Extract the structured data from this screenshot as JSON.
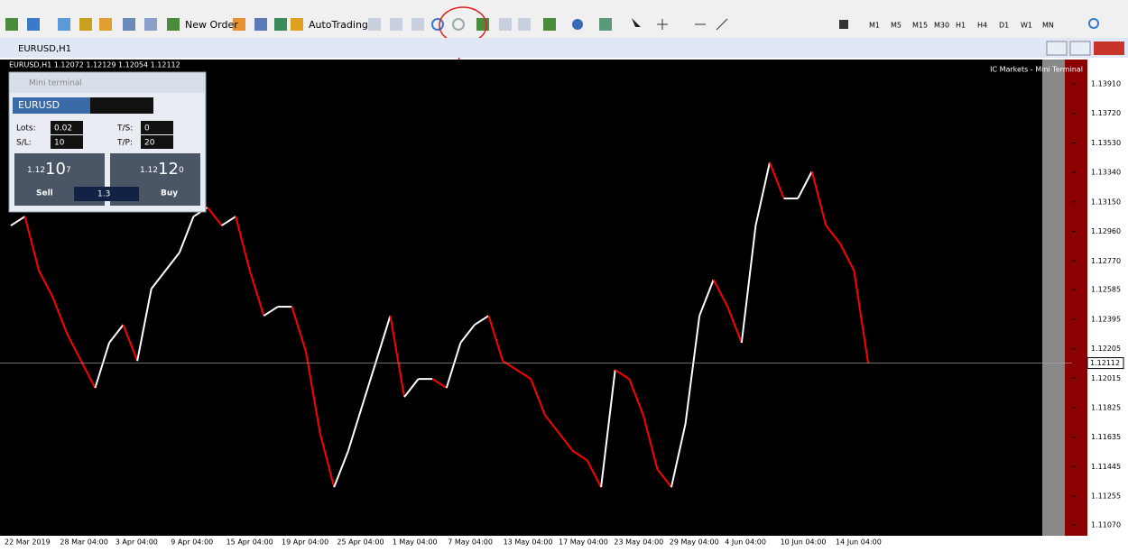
{
  "toolbar": {
    "new_order": "New Order",
    "auto_trading": "AutoTrading",
    "timeframes": [
      "M1",
      "M5",
      "M15",
      "M30",
      "H1",
      "H4",
      "D1",
      "W1",
      "MN"
    ]
  },
  "window": {
    "title": "EURUSD,H1"
  },
  "chart_data": {
    "type": "line",
    "title": "EURUSD,H1  1.12072 1.12129 1.12054 1.12112",
    "annotation": "IC Markets - Mini Terminal",
    "current_price": 1.12112,
    "up_color": "#ffffff",
    "down_color": "#ff0000",
    "values": [
      1.12998,
      1.13056,
      1.12707,
      1.12533,
      1.12301,
      1.12126,
      1.11952,
      1.12243,
      1.12359,
      1.12126,
      1.12591,
      1.12707,
      1.12824,
      1.13056,
      1.13114,
      1.12998,
      1.13056,
      1.12707,
      1.12417,
      1.12475,
      1.12475,
      1.12184,
      1.11662,
      1.11313,
      1.11545,
      1.11836,
      1.12126,
      1.12417,
      1.11894,
      1.1201,
      1.1201,
      1.11952,
      1.12243,
      1.12359,
      1.12417,
      1.12126,
      1.12068,
      1.1201,
      1.11778,
      1.11662,
      1.11545,
      1.11487,
      1.11313,
      1.12068,
      1.1201,
      1.11778,
      1.11429,
      1.11313,
      1.1172,
      1.12417,
      1.12649,
      1.12475,
      1.12243,
      1.12998,
      1.13405,
      1.13172,
      1.13172,
      1.13346,
      1.12998,
      1.12882,
      1.12707,
      1.12112
    ],
    "ylim": [
      1.1107,
      1.1391
    ],
    "yticks": [
      {
        "value": 1.1391,
        "label": "1.13910"
      },
      {
        "value": 1.1372,
        "label": "1.13720"
      },
      {
        "value": 1.1353,
        "label": "1.13530"
      },
      {
        "value": 1.1334,
        "label": "1.13340"
      },
      {
        "value": 1.1315,
        "label": "1.13150"
      },
      {
        "value": 1.1296,
        "label": "1.12960"
      },
      {
        "value": 1.1277,
        "label": "1.12770"
      },
      1.12585,
      1.12395,
      1.12205,
      1.12015,
      1.11825,
      1.11635,
      1.11445,
      1.11255,
      {
        "value": 1.1107,
        "label": "1.11070"
      }
    ],
    "xlabels": [
      "22 Mar 2019",
      "28 Mar 04:00",
      "3 Apr 04:00",
      "9 Apr 04:00",
      "15 Apr 04:00",
      "19 Apr 04:00",
      "25 Apr 04:00",
      "1 May 04:00",
      "7 May 04:00",
      "13 May 04:00",
      "17 May 04:00",
      "23 May 04:00",
      "29 May 04:00",
      "4 Jun 04:00",
      "10 Jun 04:00",
      "14 Jun 04:00"
    ]
  },
  "mini_terminal": {
    "title": "Mini terminal",
    "symbol": "EURUSD",
    "lots_label": "Lots:",
    "lots": "0.02",
    "ts_label": "T/S:",
    "ts": "0",
    "sl_label": "S/L:",
    "sl": "10",
    "tp_label": "T/P:",
    "tp": "20",
    "sell_price": {
      "big": "1.12",
      "pips": "10",
      "point": "7"
    },
    "buy_price": {
      "big": "1.12",
      "pips": "12",
      "point": "0"
    },
    "sell": "Sell",
    "spread": "1.3",
    "buy": "Buy"
  }
}
